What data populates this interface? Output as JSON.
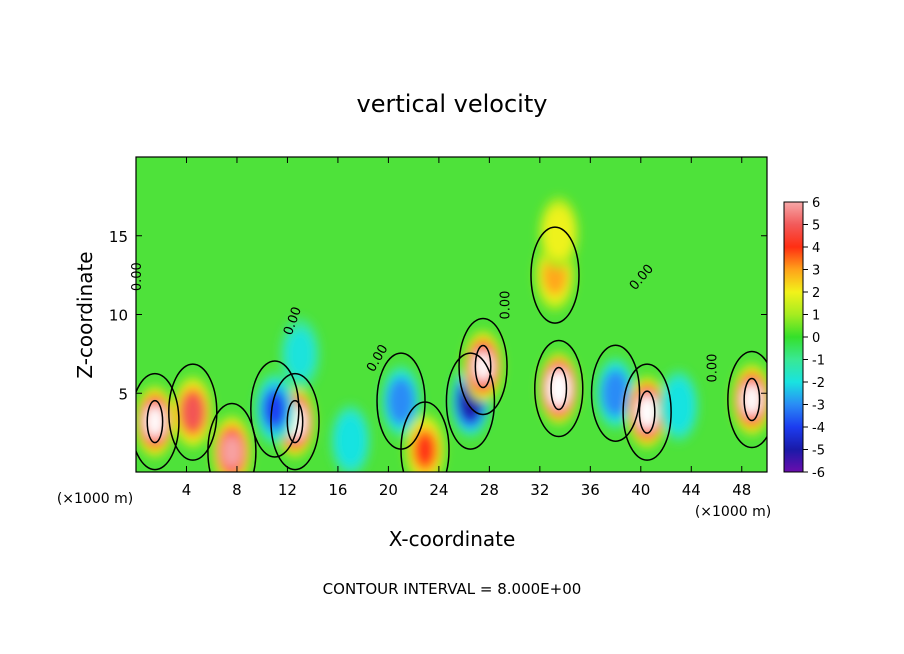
{
  "chart_data": {
    "type": "heatmap",
    "title": "vertical velocity",
    "xlabel": "X-coordinate",
    "ylabel": "Z-coordinate",
    "x_unit_label": "(×1000 m)",
    "y_unit_label": "(×1000 m)",
    "footer": "CONTOUR INTERVAL = 8.000E+00",
    "xlim": [
      0,
      50
    ],
    "ylim": [
      0,
      20
    ],
    "x_ticks": [
      4,
      8,
      12,
      16,
      20,
      24,
      28,
      32,
      36,
      40,
      44,
      48
    ],
    "y_ticks": [
      5,
      10,
      15
    ],
    "colorbar": {
      "min": -6,
      "max": 6,
      "ticks": [
        6,
        5,
        4,
        3,
        2,
        1,
        0,
        -1,
        -2,
        -3,
        -4,
        -5,
        -6
      ],
      "colors": [
        {
          "v": -6,
          "c": "#6a0dad"
        },
        {
          "v": -5,
          "c": "#1a1aa8"
        },
        {
          "v": -4,
          "c": "#1c3cf0"
        },
        {
          "v": -3,
          "c": "#2a8cf5"
        },
        {
          "v": -2,
          "c": "#19e3e0"
        },
        {
          "v": -1,
          "c": "#39e894"
        },
        {
          "v": 0,
          "c": "#35e02a"
        },
        {
          "v": 1,
          "c": "#a6ec20"
        },
        {
          "v": 2,
          "c": "#f2f21a"
        },
        {
          "v": 3,
          "c": "#ffa21a"
        },
        {
          "v": 4,
          "c": "#ff2e12"
        },
        {
          "v": 5,
          "c": "#f25a5a"
        },
        {
          "v": 6,
          "c": "#f7a8a8"
        }
      ]
    },
    "contour_labels": [
      {
        "text": "0.00",
        "x": 0.4,
        "y": 12.4,
        "angle": -90
      },
      {
        "text": "0.00",
        "x": 12.7,
        "y": 9.5,
        "angle": -70
      },
      {
        "text": "0.00",
        "x": 19.4,
        "y": 7.1,
        "angle": -60
      },
      {
        "text": "0.00",
        "x": 29.6,
        "y": 10.6,
        "angle": -90
      },
      {
        "text": "0.00",
        "x": 40.3,
        "y": 12.2,
        "angle": -50
      },
      {
        "text": "0.00",
        "x": 46.0,
        "y": 6.6,
        "angle": -90
      }
    ],
    "features": [
      {
        "x": 1.5,
        "y": 3.2,
        "value": 6.5
      },
      {
        "x": 4.5,
        "y": 3.8,
        "value": 4.5
      },
      {
        "x": 7.6,
        "y": 1.3,
        "value": 5.5
      },
      {
        "x": 12.6,
        "y": 3.2,
        "value": 8.0
      },
      {
        "x": 11.0,
        "y": 4.0,
        "value": -4.0
      },
      {
        "x": 17.0,
        "y": 2.0,
        "value": -2.5
      },
      {
        "x": 21.0,
        "y": 4.5,
        "value": -3.5
      },
      {
        "x": 22.9,
        "y": 1.4,
        "value": 4.0
      },
      {
        "x": 26.5,
        "y": 4.5,
        "value": -5.5
      },
      {
        "x": 27.5,
        "y": 6.7,
        "value": 7.0
      },
      {
        "x": 33.5,
        "y": 5.3,
        "value": 9.0
      },
      {
        "x": 33.2,
        "y": 12.5,
        "value": 3.0
      },
      {
        "x": 33.5,
        "y": 15.2,
        "value": 1.8
      },
      {
        "x": 38.0,
        "y": 5.0,
        "value": -3.5
      },
      {
        "x": 40.5,
        "y": 3.8,
        "value": 8.0
      },
      {
        "x": 43.0,
        "y": 4.2,
        "value": -2.5
      },
      {
        "x": 48.8,
        "y": 4.6,
        "value": 6.5
      },
      {
        "x": 13.0,
        "y": 7.5,
        "value": -2.0
      }
    ]
  }
}
